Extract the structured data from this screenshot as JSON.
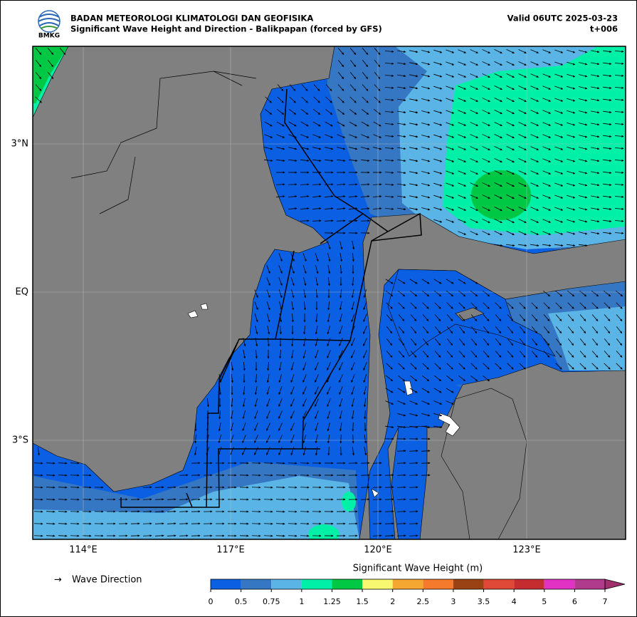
{
  "header": {
    "logo": "BMKG",
    "agency": "BADAN METEOROLOGI KLIMATOLOGI DAN GEOFISIKA",
    "title": "Significant Wave Height and Direction - Balikpapan (forced by GFS)",
    "valid": "Valid 06UTC 2025-03-23",
    "step": "t+006"
  },
  "map": {
    "lon_labels": [
      "114°E",
      "117°E",
      "120°E",
      "123°E"
    ],
    "lat_labels": [
      "3°N",
      "EQ",
      "3°S"
    ]
  },
  "legend": {
    "arrow": "→",
    "label": "Wave Direction"
  },
  "colorbar": {
    "title": "Significant Wave Height (m)",
    "ticks": [
      0,
      0.5,
      0.75,
      1,
      1.25,
      1.5,
      2,
      2.5,
      3,
      3.5,
      4,
      5,
      6,
      7
    ],
    "colors": [
      "#0b5fe3",
      "#3677c4",
      "#5ab4e6",
      "#00f0a8",
      "#00c844",
      "#f8f870",
      "#f4a832",
      "#f57a2c",
      "#9a4214",
      "#e04838",
      "#c42c30",
      "#e232c4",
      "#b03a8c"
    ],
    "extend_color": "#a0306e"
  }
}
